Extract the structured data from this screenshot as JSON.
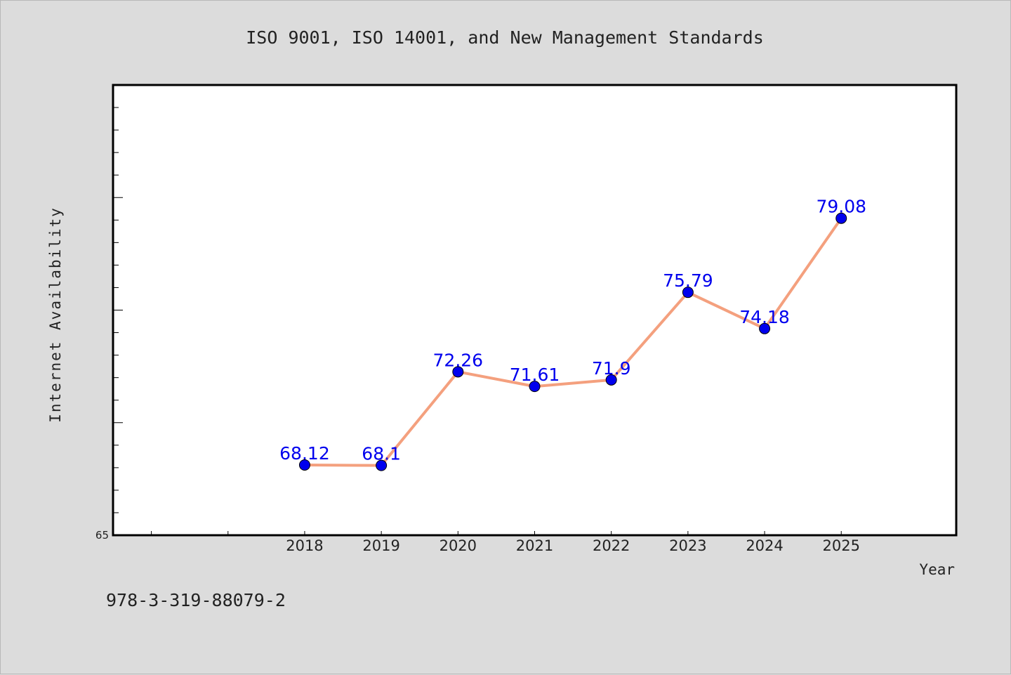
{
  "figure": {
    "background": "#dcdcdc",
    "footer_text": "978-3-319-88079-2"
  },
  "chart_data": {
    "type": "line",
    "title": "ISO 9001, ISO 14001, and New Management Standards",
    "xlabel": "Year",
    "ylabel": "Internet Availability",
    "x": [
      2018,
      2019,
      2020,
      2021,
      2022,
      2023,
      2024,
      2025
    ],
    "xlim": [
      2015.5,
      2026.5
    ],
    "ylim": [
      65,
      85
    ],
    "yticks": [
      {
        "value": 65,
        "label": "65"
      }
    ],
    "series": [
      {
        "values": [
          68.12,
          68.1,
          72.26,
          71.61,
          71.9,
          75.79,
          74.18,
          79.08
        ],
        "labels": [
          "68.12",
          "68.1",
          "72.26",
          "71.61",
          "71.9",
          "75.79",
          "74.18",
          "79.08"
        ],
        "line_color": "#f4a07e",
        "marker_color": "#0000ee"
      }
    ],
    "grid": false,
    "legend": "none"
  }
}
